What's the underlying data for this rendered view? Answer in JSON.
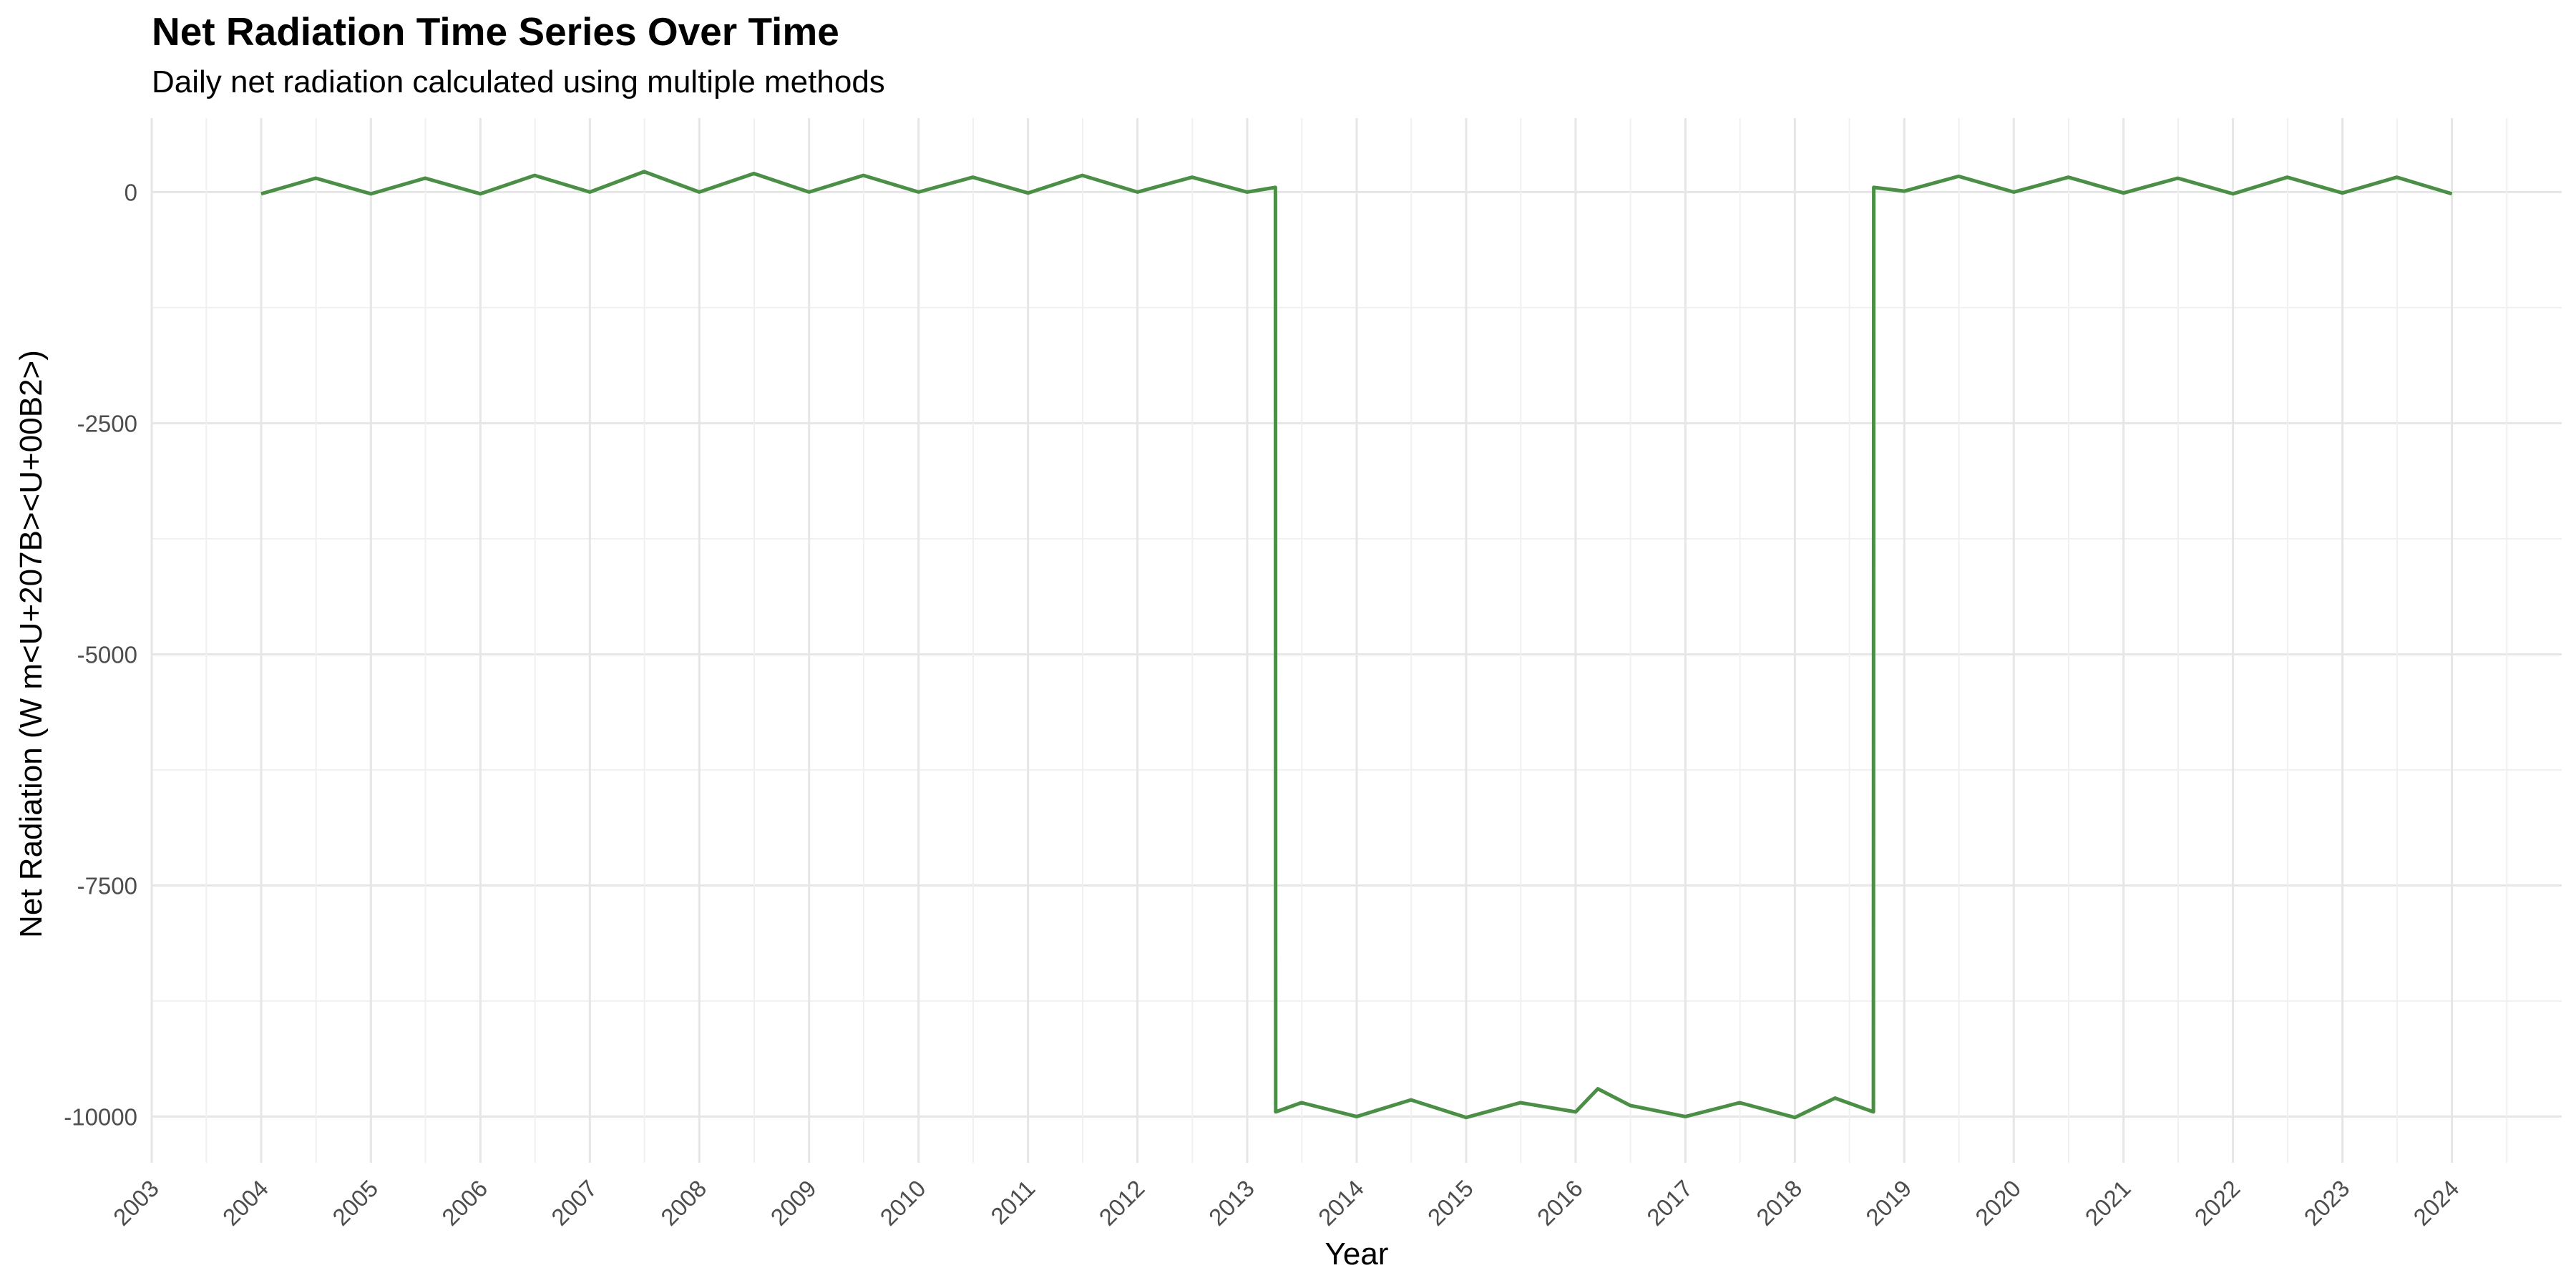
{
  "chart_data": {
    "type": "line",
    "title": "Net Radiation Time Series Over Time",
    "subtitle": "Daily net radiation calculated using multiple methods",
    "xlabel": "Year",
    "ylabel": "Net Radiation (W m<U+207B><U+00B2>)",
    "xlim": [
      "2003-01-01",
      "2025-01-01"
    ],
    "ylim": [
      -10500,
      800
    ],
    "yticks": [
      0,
      -2500,
      -5000,
      -7500,
      -10000
    ],
    "yticklabels": [
      "0",
      "-2500",
      "-5000",
      "-7500",
      "-10000"
    ],
    "xticklabels": [
      "2003",
      "2004",
      "2005",
      "2006",
      "2007",
      "2008",
      "2009",
      "2010",
      "2011",
      "2012",
      "2013",
      "2014",
      "2015",
      "2016",
      "2017",
      "2018",
      "2019",
      "2020",
      "2021",
      "2022",
      "2023",
      "2024"
    ],
    "grid": true,
    "line_color": "#4a8f45",
    "series": [
      {
        "x": [
          "2004-01-01",
          "2004-07-01",
          "2005-01-01",
          "2005-07-01",
          "2006-01-01",
          "2006-07-01",
          "2007-01-01",
          "2007-07-01",
          "2008-01-01",
          "2008-07-01",
          "2009-01-01",
          "2009-07-01",
          "2010-01-01",
          "2010-07-01",
          "2011-01-01",
          "2011-07-01",
          "2012-01-01",
          "2012-07-01",
          "2013-01-01",
          "2013-04-05",
          "2013-04-06",
          "2013-07-01",
          "2014-01-01",
          "2014-07-01",
          "2015-01-01",
          "2015-07-01",
          "2016-01-01",
          "2016-03-15",
          "2016-07-01",
          "2017-01-01",
          "2017-07-01",
          "2018-01-01",
          "2018-05-15",
          "2018-09-20",
          "2018-09-21",
          "2019-01-01",
          "2019-07-01",
          "2020-01-01",
          "2020-07-01",
          "2021-01-01",
          "2021-07-01",
          "2022-01-01",
          "2022-07-01",
          "2023-01-01",
          "2023-07-01",
          "2024-01-01"
        ],
        "values": [
          -20,
          150,
          -20,
          150,
          -20,
          180,
          0,
          220,
          0,
          200,
          0,
          180,
          0,
          160,
          -10,
          180,
          0,
          160,
          0,
          50,
          -9950,
          -9850,
          -10000,
          -9820,
          -10010,
          -9850,
          -9950,
          -9700,
          -9880,
          -10000,
          -9850,
          -10010,
          -9800,
          -9950,
          50,
          10,
          170,
          0,
          160,
          -10,
          150,
          -20,
          160,
          -10,
          160,
          -20
        ]
      }
    ]
  }
}
